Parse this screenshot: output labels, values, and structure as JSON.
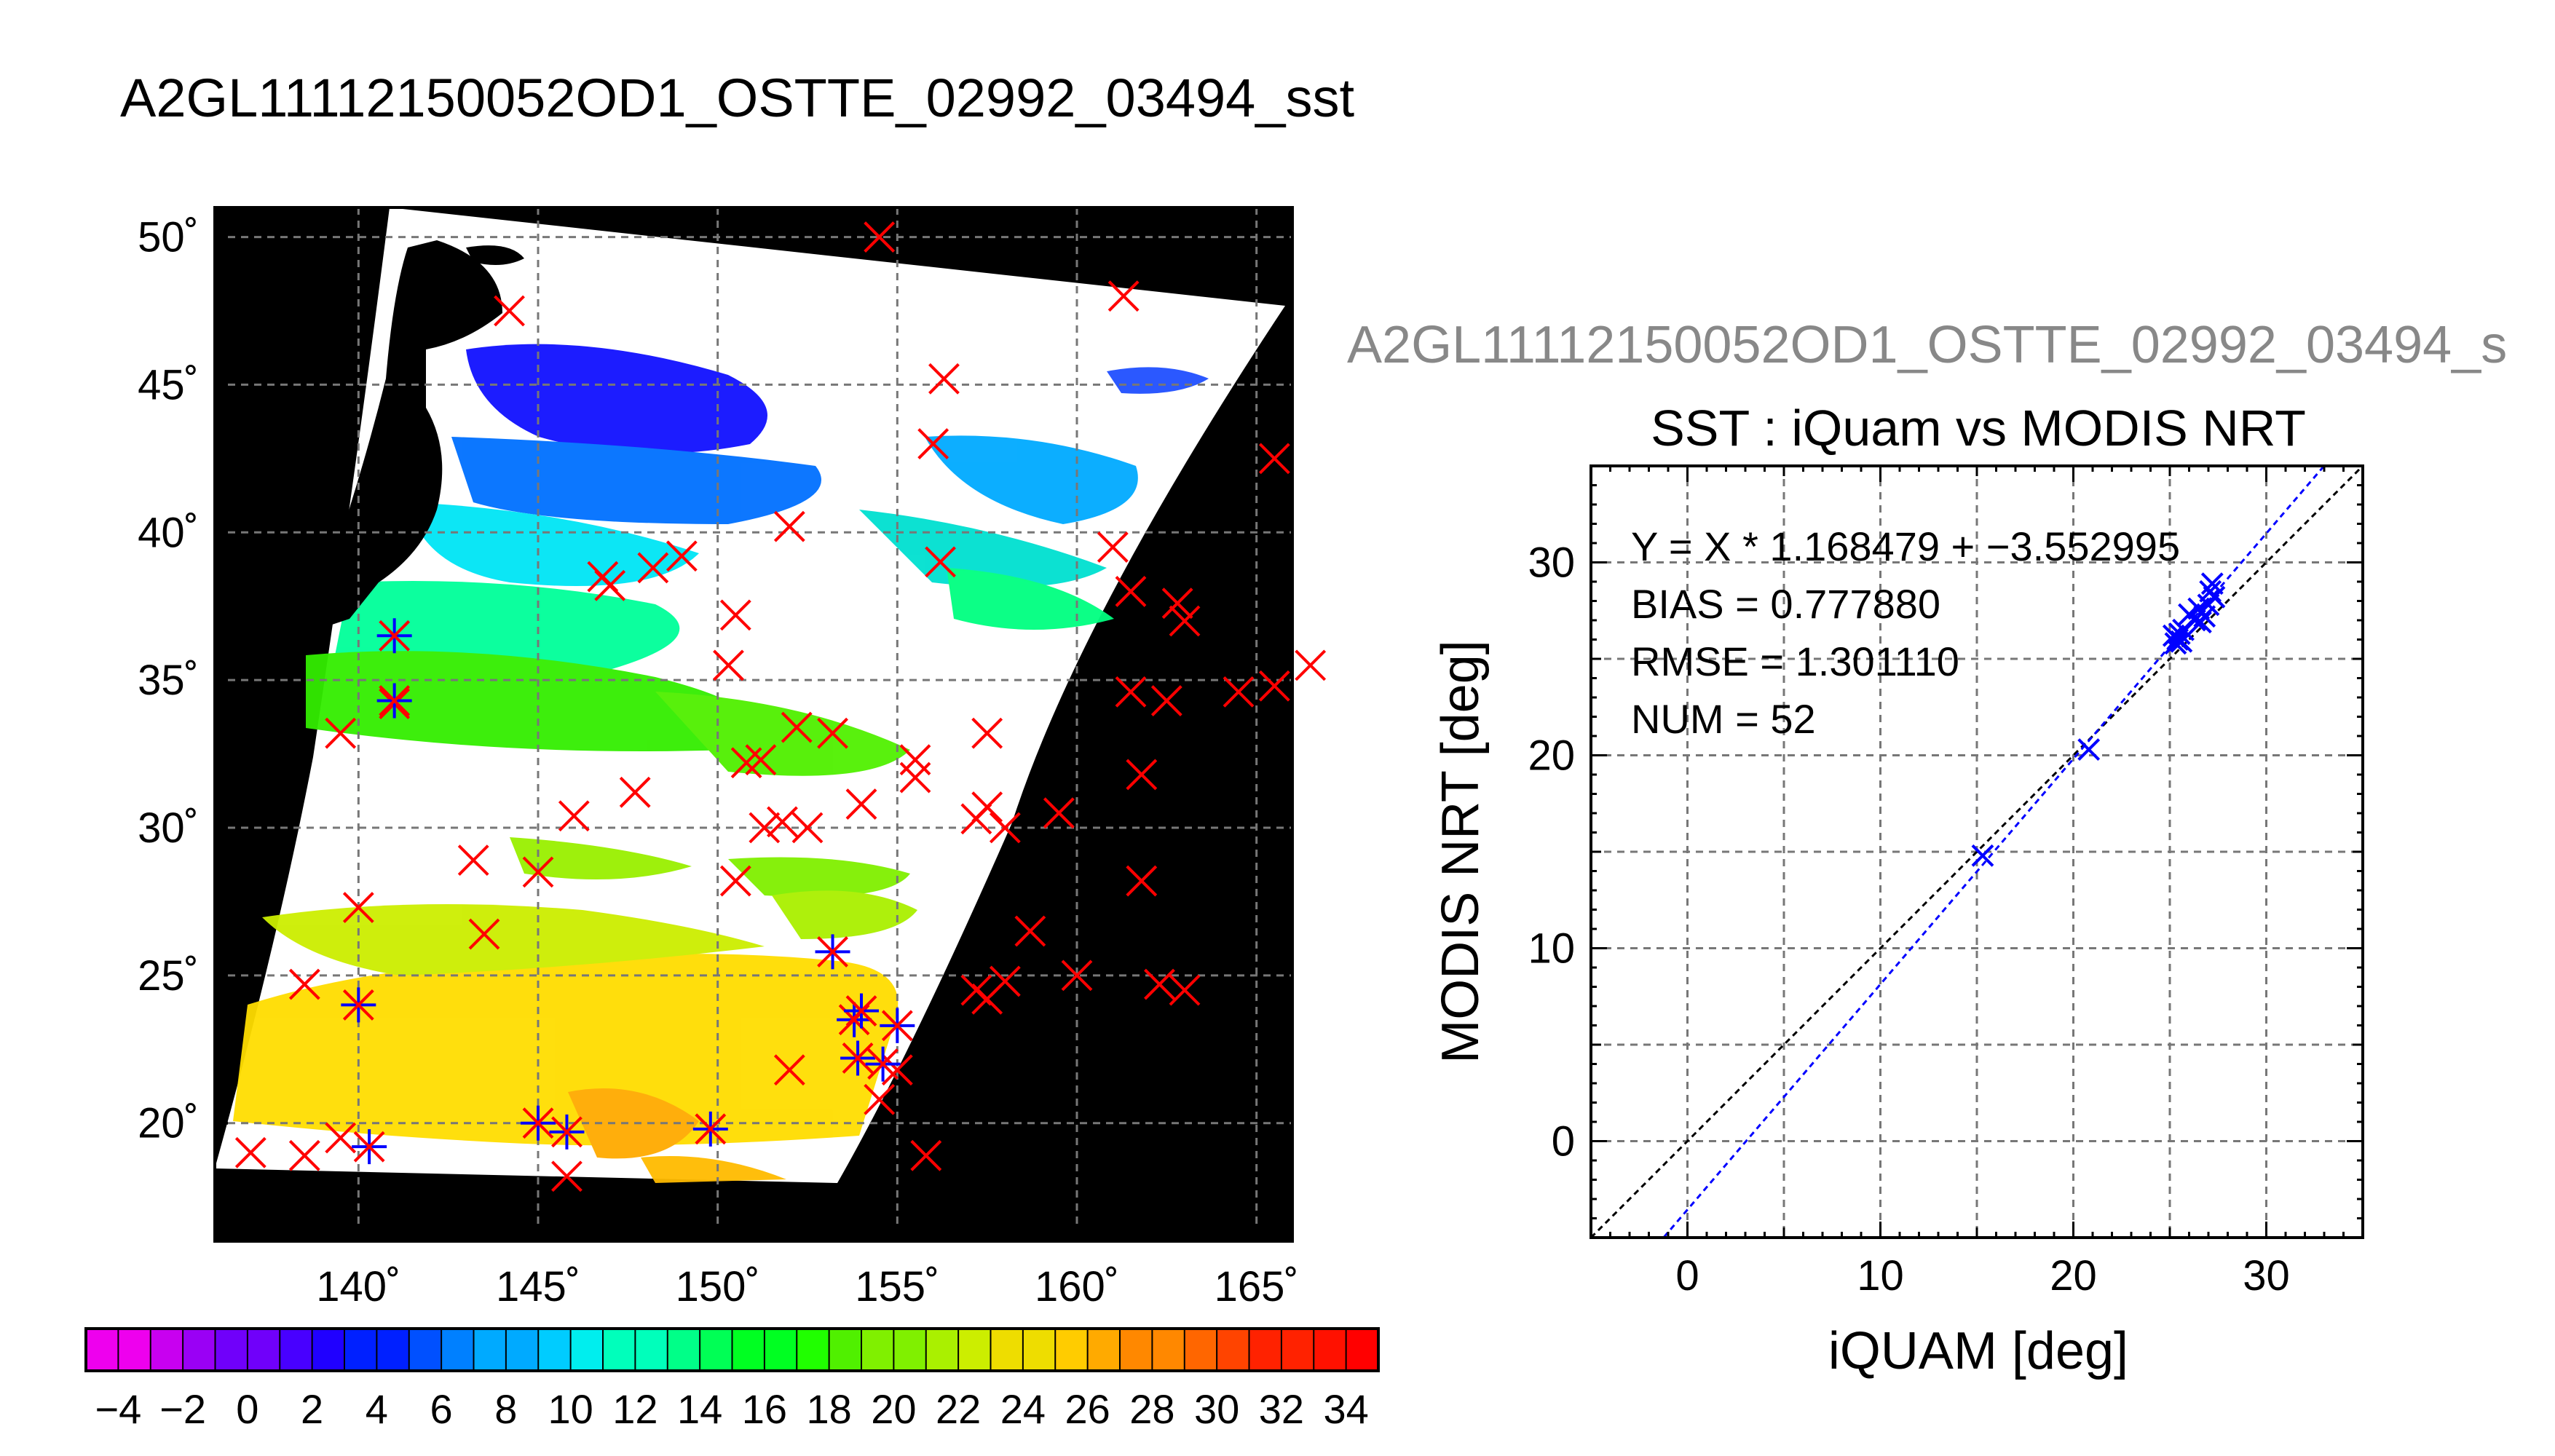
{
  "page_title": "A2GL11112150052OD1_OSTTE_02992_03494_sst",
  "chart_data": [
    {
      "type": "heatmap",
      "title": "A2GL11112150052OD1_OSTTE_02992_03494_sst",
      "map_projection": "lat-lon",
      "xlim": [
        136,
        166
      ],
      "ylim": [
        16,
        51
      ],
      "x_ticks": [
        140,
        145,
        150,
        155,
        160,
        165
      ],
      "x_tick_labels": [
        "140˚",
        "145˚",
        "150˚",
        "155˚",
        "160˚",
        "165˚"
      ],
      "y_ticks": [
        20,
        25,
        30,
        35,
        40,
        45,
        50
      ],
      "y_tick_labels": [
        "20˚",
        "25˚",
        "30˚",
        "35˚",
        "40˚",
        "45˚",
        "50˚"
      ],
      "grid": true,
      "no_data_color": "#000000",
      "cloud_color": "#ffffff",
      "colorbar": {
        "min": -5,
        "max": 35,
        "step": 1,
        "tick_values": [
          -4,
          -2,
          0,
          2,
          4,
          6,
          8,
          10,
          12,
          14,
          16,
          18,
          20,
          22,
          24,
          26,
          28,
          30,
          32,
          34
        ],
        "tick_labels": [
          "−4",
          "−2",
          "0",
          "2",
          "4",
          "6",
          "8",
          "10",
          "12",
          "14",
          "16",
          "18",
          "20",
          "22",
          "24",
          "26",
          "28",
          "30",
          "32",
          "34"
        ],
        "colors": [
          "#ee00ee",
          "#c800f0",
          "#9a00f5",
          "#7000fa",
          "#4800ff",
          "#2000ff",
          "#0020ff",
          "#0050ff",
          "#0080ff",
          "#00aaff",
          "#00ccff",
          "#00eeee",
          "#00ffbb",
          "#00ff88",
          "#00ff55",
          "#00ff22",
          "#20ff00",
          "#50f000",
          "#80f000",
          "#aaf000",
          "#ccee00",
          "#eedd00",
          "#ffcc00",
          "#ffaa00",
          "#ff8800",
          "#ff6600",
          "#ff4400",
          "#ff2200",
          "#ff1100",
          "#ff0000"
        ]
      },
      "series": [
        {
          "marker": "x",
          "color": "#ff0000",
          "points": [
            [
              154.5,
              50
            ],
            [
              144.2,
              47.5
            ],
            [
              161.3,
              48
            ],
            [
              156.3,
              45.2
            ],
            [
              156.0,
              43
            ],
            [
              165.5,
              42.5
            ],
            [
              152.0,
              40.2
            ],
            [
              146.8,
              38.5
            ],
            [
              147.0,
              38.2
            ],
            [
              148.2,
              38.8
            ],
            [
              149.0,
              39.2
            ],
            [
              161.0,
              39.5
            ],
            [
              156.2,
              39
            ],
            [
              161.5,
              38
            ],
            [
              162.8,
              37.6
            ],
            [
              163.0,
              37
            ],
            [
              150.5,
              37.2
            ],
            [
              150.3,
              35.5
            ],
            [
              166.5,
              35.5
            ],
            [
              165.5,
              34.8
            ],
            [
              164.5,
              34.6
            ],
            [
              161.5,
              34.6
            ],
            [
              162.5,
              34.3
            ],
            [
              141.0,
              34.2
            ],
            [
              139.5,
              33.2
            ],
            [
              153.2,
              33.2
            ],
            [
              152.2,
              33.4
            ],
            [
              157.5,
              33.2
            ],
            [
              155.5,
              32.3
            ],
            [
              155.5,
              31.7
            ],
            [
              150.8,
              32.2
            ],
            [
              151.2,
              32.3
            ],
            [
              161.8,
              31.8
            ],
            [
              147.7,
              31.2
            ],
            [
              154.0,
              30.8
            ],
            [
              157.5,
              30.7
            ],
            [
              157.2,
              30.3
            ],
            [
              146.0,
              30.4
            ],
            [
              152.5,
              30.0
            ],
            [
              151.8,
              30.2
            ],
            [
              151.3,
              30.0
            ],
            [
              158.0,
              30.0
            ],
            [
              159.5,
              30.5
            ],
            [
              143.2,
              28.9
            ],
            [
              145.0,
              28.5
            ],
            [
              150.5,
              28.2
            ],
            [
              161.8,
              28.2
            ],
            [
              140.0,
              27.3
            ],
            [
              143.5,
              26.4
            ],
            [
              158.7,
              26.5
            ],
            [
              138.5,
              24.7
            ],
            [
              157.2,
              24.5
            ],
            [
              157.5,
              24.2
            ],
            [
              158.0,
              24.8
            ],
            [
              160.0,
              25
            ],
            [
              162.3,
              24.7
            ],
            [
              163.0,
              24.5
            ],
            [
              155.0,
              21.8
            ],
            [
              152.0,
              21.8
            ],
            [
              154.5,
              20.8
            ],
            [
              139.5,
              19.5
            ],
            [
              137.0,
              19
            ],
            [
              138.5,
              18.9
            ],
            [
              145.8,
              18.2
            ],
            [
              155.8,
              18.9
            ]
          ]
        },
        {
          "marker": "x+asterisk",
          "color": "#0000ff",
          "points": [
            [
              141.0,
              36.5
            ],
            [
              141.0,
              34.3
            ],
            [
              140.0,
              24.0
            ],
            [
              140.3,
              19.2
            ],
            [
              145.0,
              20.0
            ],
            [
              145.8,
              19.7
            ],
            [
              149.8,
              19.8
            ],
            [
              153.2,
              25.8
            ],
            [
              153.8,
              23.5
            ],
            [
              154.0,
              23.8
            ],
            [
              153.9,
              22.2
            ],
            [
              154.6,
              22.0
            ],
            [
              155.0,
              23.3
            ]
          ]
        }
      ]
    },
    {
      "type": "scatter",
      "title": "SST : iQuam vs MODIS NRT",
      "background_title": "A2GL11112150052OD1_OSTTE_02992_03494_s",
      "xlabel": "iQUAM [deg]",
      "ylabel": "MODIS NRT [deg]",
      "xlim": [
        -5,
        35
      ],
      "ylim": [
        -5,
        35
      ],
      "x_ticks": [
        0,
        10,
        20,
        30
      ],
      "y_ticks": [
        0,
        10,
        20,
        30
      ],
      "minor_step": 5,
      "grid": true,
      "fit": {
        "slope": 1.168479,
        "intercept": -3.552995,
        "color": "#0000ff",
        "style": "dashed"
      },
      "reference_line": {
        "slope": 1,
        "intercept": 0,
        "color": "#000000",
        "style": "dashed"
      },
      "stats_lines": [
        "Y = X * 1.168479 + −3.552995",
        "BIAS = 0.777880",
        "RMSE = 1.301110",
        "NUM = 52"
      ],
      "points_color": "#0000ff",
      "points": [
        [
          15.3,
          14.8
        ],
        [
          20.8,
          20.3
        ],
        [
          25.2,
          26.2
        ],
        [
          25.3,
          25.8
        ],
        [
          25.5,
          26.3
        ],
        [
          25.4,
          26.0
        ],
        [
          25.6,
          25.9
        ],
        [
          25.7,
          26.5
        ],
        [
          26.0,
          27.3
        ],
        [
          26.3,
          27.0
        ],
        [
          26.6,
          26.9
        ],
        [
          26.5,
          27.6
        ],
        [
          26.8,
          27.2
        ],
        [
          27.0,
          27.8
        ],
        [
          27.1,
          28.5
        ],
        [
          27.2,
          28.9
        ],
        [
          27.3,
          28.2
        ]
      ]
    }
  ]
}
